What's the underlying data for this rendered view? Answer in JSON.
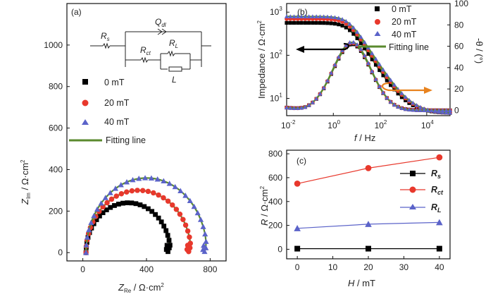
{
  "chart_data": [
    {
      "panel": "(a)",
      "type": "scatter",
      "xlabel": "Z_Re / Ω·cm²",
      "xlabel_main": "Z",
      "xlabel_sub": "Re",
      "xlabel_unit": " / Ω·cm",
      "ylabel": "Z_Im / Ω·cm²",
      "ylabel_main": "Z",
      "ylabel_sub": "Im",
      "ylabel_unit": " / Ω·cm",
      "xlim": [
        -100,
        900
      ],
      "ylim": [
        -40,
        1200
      ],
      "xticks": [
        "0",
        "400",
        "800"
      ],
      "yticks": [
        "0",
        "200",
        "400",
        "600",
        "800",
        "1000"
      ],
      "circuit_labels": {
        "rs_main": "R",
        "rs_sub": "s",
        "qdl_main": "Q",
        "qdl_sub": "dl",
        "rct_main": "R",
        "rct_sub": "ct",
        "rl_main": "R",
        "rl_sub": "L",
        "l": "L"
      },
      "legend": [
        "0 mT",
        "20 mT",
        "40 mT",
        "Fitting line"
      ],
      "series": [
        {
          "name": "0 mT",
          "color": "#000000",
          "marker": "square",
          "rs": 20,
          "rct": 530,
          "peak": 240,
          "low_end_x": 555,
          "low_end_y": 45,
          "tail_min_x": 535,
          "tail_min_y": 5
        },
        {
          "name": "20 mT",
          "color": "#e8382c",
          "marker": "circle",
          "rs": 20,
          "rct": 660,
          "peak": 300,
          "low_end_x": 690,
          "low_end_y": 45,
          "tail_min_x": 665,
          "tail_min_y": 5
        },
        {
          "name": "40 mT",
          "color": "#5b63c9",
          "marker": "triangle",
          "rs": 20,
          "rct": 760,
          "peak": 360,
          "low_end_x": 790,
          "low_end_y": 45,
          "tail_min_x": 765,
          "tail_min_y": 5
        }
      ]
    },
    {
      "panel": "(b)",
      "type": "line",
      "xlabel_main": "f",
      "xlabel_unit": " / Hz",
      "ylabel_left": "Impedance / Ω·cm²",
      "ylabel_left_text": "Impedance / Ω·cm",
      "ylabel_right": "-θ / (°)",
      "xlim_log": [
        -2,
        5
      ],
      "ylim_left_log": [
        0.6,
        3.2
      ],
      "ylim_right": [
        -5,
        100
      ],
      "xticks": [
        {
          "base": "10",
          "exp": "-2",
          "v": -2
        },
        {
          "base": "10",
          "exp": "0",
          "v": 0
        },
        {
          "base": "10",
          "exp": "2",
          "v": 2
        },
        {
          "base": "10",
          "exp": "4",
          "v": 4
        }
      ],
      "yticks_left": [
        {
          "base": "10",
          "exp": "1",
          "v": 1
        },
        {
          "base": "10",
          "exp": "2",
          "v": 2
        },
        {
          "base": "10",
          "exp": "3",
          "v": 3
        }
      ],
      "yticks_right": [
        "0",
        "20",
        "40",
        "60",
        "80",
        "100"
      ],
      "legend": [
        "0 mT",
        "20 mT",
        "40 mT",
        "Fitting line"
      ],
      "series": [
        {
          "name": "0 mT",
          "color": "#000000",
          "marker": "square",
          "z_low": 560,
          "phase_peak": 62
        },
        {
          "name": "20 mT",
          "color": "#e8382c",
          "marker": "circle",
          "z_low": 690,
          "phase_peak": 63
        },
        {
          "name": "40 mT",
          "color": "#5b63c9",
          "marker": "triangle",
          "z_low": 790,
          "phase_peak": 64
        }
      ],
      "rs": 4.5,
      "phase_center_log": 0.8
    },
    {
      "panel": "(c)",
      "type": "line",
      "xlabel_main": "H",
      "xlabel_unit": " / mT",
      "ylabel_main": "R",
      "ylabel_unit": " / Ω·cm",
      "xlim": [
        -3,
        43
      ],
      "ylim": [
        -80,
        830
      ],
      "xticks": [
        "0",
        "10",
        "20",
        "30",
        "40"
      ],
      "yticks": [
        "0",
        "200",
        "400",
        "600",
        "800"
      ],
      "x": [
        0,
        20,
        40
      ],
      "legend": [
        {
          "main": "R",
          "sub": "s"
        },
        {
          "main": "R",
          "sub": "ct"
        },
        {
          "main": "R",
          "sub": "L"
        }
      ],
      "series": [
        {
          "name": "Rs",
          "color": "#000000",
          "marker": "square",
          "values": [
            5,
            5,
            5
          ]
        },
        {
          "name": "Rct",
          "color": "#e8382c",
          "marker": "circle",
          "values": [
            550,
            680,
            770
          ]
        },
        {
          "name": "RL",
          "color": "#5b63c9",
          "marker": "triangle",
          "values": [
            175,
            210,
            225
          ]
        }
      ]
    }
  ],
  "colors": {
    "fit": "#5a8a2e",
    "arrow_left": "#000000",
    "arrow_right": "#e8821e"
  }
}
